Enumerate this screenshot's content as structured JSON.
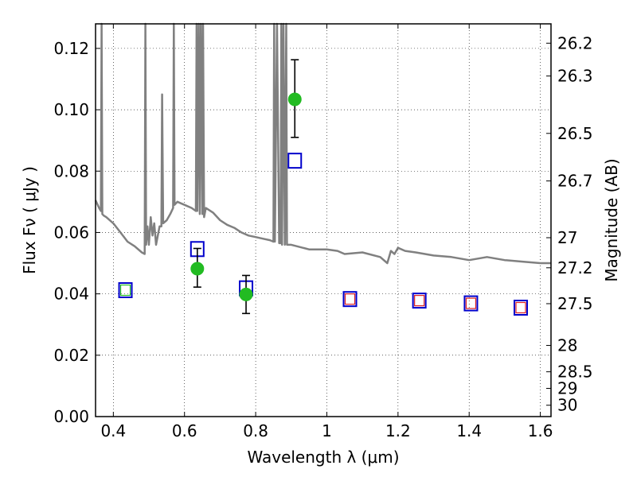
{
  "chart_data": {
    "type": "scatter",
    "xlabel": "Wavelength  λ (μm)",
    "ylabel": "Flux  Fν  ( μJy )",
    "y2label": "Magnitude (AB)",
    "xlim": [
      0.35,
      1.63
    ],
    "ylim": [
      0.0,
      0.128
    ],
    "grid": true,
    "x_ticks": [
      0.4,
      0.6,
      0.8,
      1.0,
      1.2,
      1.4,
      1.6
    ],
    "x_tick_labels": [
      "0.4",
      "0.6",
      "0.8",
      "1",
      "1.2",
      "1.4",
      "1.6"
    ],
    "y_ticks": [
      0.0,
      0.02,
      0.04,
      0.06,
      0.08,
      0.1,
      0.12
    ],
    "y_tick_labels": [
      "0.00",
      "0.02",
      "0.04",
      "0.06",
      "0.08",
      "0.10",
      "0.12"
    ],
    "y2_ticks": [
      {
        "label": "26.2",
        "flux": 0.1217
      },
      {
        "label": "26.3",
        "flux": 0.111
      },
      {
        "label": "26.5",
        "flux": 0.0923
      },
      {
        "label": "26.7",
        "flux": 0.0768
      },
      {
        "label": "27",
        "flux": 0.0583
      },
      {
        "label": "27.2",
        "flux": 0.0485
      },
      {
        "label": "27.5",
        "flux": 0.0368
      },
      {
        "label": "28",
        "flux": 0.0232
      },
      {
        "label": "28.5",
        "flux": 0.0146
      },
      {
        "label": "29",
        "flux": 0.0092
      },
      {
        "label": "30",
        "flux": 0.0037
      }
    ],
    "series": [
      {
        "marker": "circle",
        "color": "#22bb22",
        "x": [
          0.636,
          0.773,
          0.91
        ],
        "y": [
          0.0482,
          0.0398,
          0.1034
        ],
        "yerr_low": [
          0.0422,
          0.0336,
          0.091
        ],
        "yerr_high": [
          0.0548,
          0.046,
          0.1163
        ]
      },
      {
        "marker": "square-open",
        "color": "#0000cc",
        "x": [
          0.434,
          0.636,
          0.773,
          0.91,
          1.065,
          1.26,
          1.405,
          1.545
        ],
        "y": [
          0.0412,
          0.0546,
          0.0418,
          0.0834,
          0.0383,
          0.0378,
          0.0369,
          0.0355
        ]
      },
      {
        "marker": "square-open-small",
        "color": "#22bb22",
        "x": [
          0.434
        ],
        "y": [
          0.0412
        ]
      },
      {
        "marker": "square-open-small",
        "color": "#dd2222",
        "x": [
          1.065,
          1.26,
          1.405,
          1.545
        ],
        "y": [
          0.0383,
          0.0378,
          0.0369,
          0.0355
        ]
      },
      {
        "marker": "line",
        "color": "#808080",
        "x": [
          0.35,
          0.36,
          0.365,
          0.367,
          0.369,
          0.373,
          0.38,
          0.4,
          0.42,
          0.44,
          0.46,
          0.48,
          0.488,
          0.49,
          0.492,
          0.496,
          0.5,
          0.505,
          0.51,
          0.515,
          0.52,
          0.53,
          0.535,
          0.537,
          0.54,
          0.55,
          0.56,
          0.568,
          0.57,
          0.572,
          0.58,
          0.6,
          0.62,
          0.632,
          0.634,
          0.636,
          0.64,
          0.643,
          0.646,
          0.65,
          0.652,
          0.655,
          0.66,
          0.68,
          0.7,
          0.72,
          0.74,
          0.76,
          0.78,
          0.8,
          0.82,
          0.84,
          0.85,
          0.852,
          0.854,
          0.86,
          0.866,
          0.87,
          0.872,
          0.874,
          0.878,
          0.882,
          0.886,
          0.888,
          0.89,
          0.9,
          0.95,
          1.0,
          1.03,
          1.05,
          1.1,
          1.15,
          1.17,
          1.18,
          1.19,
          1.2,
          1.22,
          1.25,
          1.3,
          1.35,
          1.4,
          1.45,
          1.5,
          1.55,
          1.6,
          1.63
        ],
        "y": [
          0.0705,
          0.068,
          0.067,
          0.128,
          0.066,
          0.0655,
          0.065,
          0.063,
          0.06,
          0.057,
          0.0555,
          0.0535,
          0.053,
          0.128,
          0.056,
          0.062,
          0.056,
          0.065,
          0.059,
          0.063,
          0.056,
          0.062,
          0.062,
          0.105,
          0.063,
          0.064,
          0.066,
          0.068,
          0.128,
          0.069,
          0.07,
          0.069,
          0.068,
          0.067,
          0.128,
          0.067,
          0.128,
          0.066,
          0.128,
          0.066,
          0.128,
          0.065,
          0.068,
          0.0665,
          0.064,
          0.0625,
          0.0615,
          0.06,
          0.059,
          0.0585,
          0.058,
          0.0575,
          0.057,
          0.128,
          0.057,
          0.128,
          0.0565,
          0.0565,
          0.128,
          0.056,
          0.128,
          0.056,
          0.128,
          0.056,
          0.056,
          0.056,
          0.0545,
          0.0545,
          0.054,
          0.053,
          0.0535,
          0.052,
          0.05,
          0.054,
          0.053,
          0.055,
          0.054,
          0.0535,
          0.0525,
          0.052,
          0.051,
          0.052,
          0.051,
          0.0505,
          0.05,
          0.05
        ]
      }
    ]
  }
}
